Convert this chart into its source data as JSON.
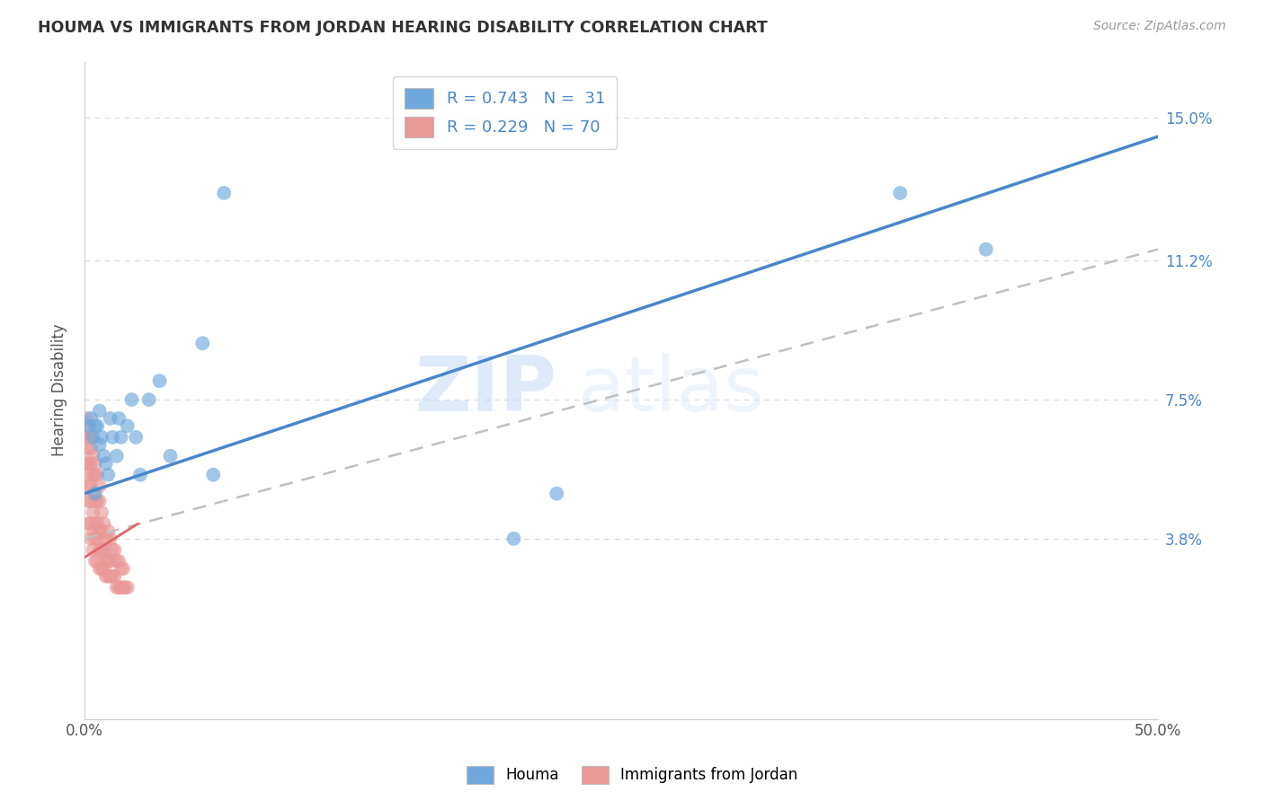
{
  "title": "HOUMA VS IMMIGRANTS FROM JORDAN HEARING DISABILITY CORRELATION CHART",
  "source": "Source: ZipAtlas.com",
  "ylabel": "Hearing Disability",
  "ytick_labels": [
    "3.8%",
    "7.5%",
    "11.2%",
    "15.0%"
  ],
  "ytick_values": [
    0.038,
    0.075,
    0.112,
    0.15
  ],
  "xlim": [
    0.0,
    0.5
  ],
  "ylim": [
    -0.01,
    0.165
  ],
  "legend_r1": "R = 0.743",
  "legend_n1": "N =  31",
  "legend_r2": "R = 0.229",
  "legend_n2": "N = 70",
  "color_blue": "#6fa8dc",
  "color_pink": "#ea9999",
  "color_blue_line": "#4a86c8",
  "color_pink_line": "#e06666",
  "color_dashed": "#c0c0c0",
  "watermark_zip": "ZIP",
  "watermark_atlas": "atlas",
  "houma_x": [
    0.002,
    0.003,
    0.004,
    0.005,
    0.005,
    0.006,
    0.007,
    0.007,
    0.008,
    0.009,
    0.01,
    0.011,
    0.012,
    0.013,
    0.015,
    0.016,
    0.017,
    0.02,
    0.022,
    0.024,
    0.026,
    0.03,
    0.035,
    0.04,
    0.055,
    0.06,
    0.065,
    0.2,
    0.22,
    0.38,
    0.42
  ],
  "houma_y": [
    0.068,
    0.07,
    0.065,
    0.05,
    0.068,
    0.068,
    0.072,
    0.063,
    0.065,
    0.06,
    0.058,
    0.055,
    0.07,
    0.065,
    0.06,
    0.07,
    0.065,
    0.068,
    0.075,
    0.065,
    0.055,
    0.075,
    0.08,
    0.06,
    0.09,
    0.055,
    0.13,
    0.038,
    0.05,
    0.13,
    0.115
  ],
  "jordan_x": [
    0.001,
    0.001,
    0.001,
    0.002,
    0.002,
    0.002,
    0.002,
    0.003,
    0.003,
    0.003,
    0.003,
    0.003,
    0.004,
    0.004,
    0.004,
    0.004,
    0.004,
    0.005,
    0.005,
    0.005,
    0.005,
    0.005,
    0.006,
    0.006,
    0.006,
    0.006,
    0.007,
    0.007,
    0.007,
    0.007,
    0.008,
    0.008,
    0.008,
    0.008,
    0.009,
    0.009,
    0.009,
    0.01,
    0.01,
    0.01,
    0.011,
    0.011,
    0.011,
    0.012,
    0.012,
    0.012,
    0.013,
    0.013,
    0.014,
    0.014,
    0.015,
    0.015,
    0.016,
    0.016,
    0.017,
    0.017,
    0.018,
    0.018,
    0.019,
    0.02,
    0.001,
    0.001,
    0.002,
    0.002,
    0.003,
    0.003,
    0.004,
    0.005,
    0.006,
    0.007
  ],
  "jordan_y": [
    0.055,
    0.058,
    0.062,
    0.042,
    0.048,
    0.052,
    0.058,
    0.038,
    0.042,
    0.048,
    0.052,
    0.058,
    0.035,
    0.04,
    0.045,
    0.05,
    0.055,
    0.032,
    0.038,
    0.042,
    0.048,
    0.055,
    0.032,
    0.038,
    0.042,
    0.048,
    0.03,
    0.035,
    0.04,
    0.048,
    0.03,
    0.035,
    0.04,
    0.045,
    0.03,
    0.035,
    0.042,
    0.028,
    0.032,
    0.038,
    0.028,
    0.032,
    0.04,
    0.028,
    0.032,
    0.038,
    0.028,
    0.035,
    0.028,
    0.035,
    0.025,
    0.032,
    0.025,
    0.032,
    0.025,
    0.03,
    0.025,
    0.03,
    0.025,
    0.025,
    0.065,
    0.07,
    0.065,
    0.068,
    0.062,
    0.065,
    0.06,
    0.058,
    0.055,
    0.052
  ],
  "background_color": "#ffffff",
  "grid_color": "#d8d8d8",
  "blue_line_x": [
    0.0,
    0.5
  ],
  "blue_line_y": [
    0.05,
    0.145
  ],
  "dashed_line_x": [
    0.0,
    0.5
  ],
  "dashed_line_y": [
    0.038,
    0.115
  ],
  "pink_line_x": [
    0.0,
    0.025
  ],
  "pink_line_y": [
    0.033,
    0.042
  ]
}
